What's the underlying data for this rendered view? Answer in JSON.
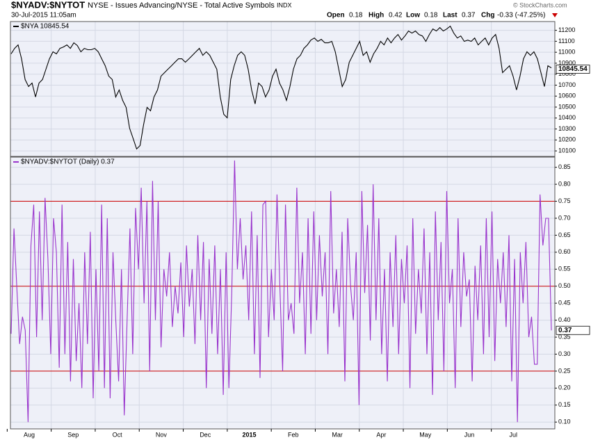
{
  "header": {
    "symbol": "$NYADV:$NYTOT",
    "description": "NYSE - Issues Advancing/NYSE - Total Active Symbols",
    "exchange": "INDX",
    "timestamp": "30-Jul-2015 11:05am",
    "open_label": "Open",
    "open": "0.18",
    "high_label": "High",
    "high": "0.42",
    "low_label": "Low",
    "low": "0.18",
    "last_label": "Last",
    "last": "0.37",
    "chg_label": "Chg",
    "chg": "-0.33 (-47.25%)",
    "credit": "© StockCharts.com"
  },
  "x_axis": {
    "labels": [
      "Aug",
      "Sep",
      "Oct",
      "Nov",
      "Dec",
      "2015",
      "Feb",
      "Mar",
      "Apr",
      "May",
      "Jun",
      "Jul"
    ]
  },
  "chart_data": [
    {
      "type": "line",
      "legend": "$NYA 10845.54",
      "last_value": 10845.54,
      "ylim": [
        10050,
        11280
      ],
      "yticks": [
        10100,
        10200,
        10300,
        10400,
        10500,
        10600,
        10700,
        10800,
        10900,
        11000,
        11100,
        11200
      ],
      "grid": true,
      "series": [
        {
          "color": "#000000",
          "values": [
            10985,
            11035,
            11067,
            10940,
            10751,
            10687,
            10719,
            10592,
            10719,
            10751,
            10846,
            10940,
            11004,
            10985,
            11035,
            11048,
            11067,
            11035,
            11086,
            11061,
            11004,
            11035,
            11023,
            11023,
            11035,
            11004,
            10940,
            10877,
            10782,
            10751,
            10592,
            10656,
            10561,
            10497,
            10307,
            10213,
            10118,
            10149,
            10339,
            10497,
            10466,
            10592,
            10656,
            10782,
            10814,
            10846,
            10877,
            10909,
            10940,
            10940,
            10909,
            10940,
            10972,
            11004,
            11035,
            10972,
            11004,
            10972,
            10909,
            10846,
            10592,
            10434,
            10402,
            10751,
            10877,
            10972,
            11004,
            10972,
            10846,
            10656,
            10529,
            10719,
            10687,
            10592,
            10656,
            10782,
            10846,
            10719,
            10656,
            10561,
            10687,
            10846,
            10940,
            10972,
            11035,
            11067,
            11111,
            11130,
            11099,
            11118,
            11086,
            11086,
            11099,
            11004,
            10846,
            10687,
            10751,
            10909,
            10972,
            11035,
            11099,
            10972,
            11004,
            10909,
            10985,
            11035,
            11099,
            11067,
            11130,
            11086,
            11130,
            11162,
            11111,
            11149,
            11194,
            11175,
            11194,
            11162,
            11149,
            11099,
            11162,
            11213,
            11194,
            11225,
            11194,
            11213,
            11238,
            11175,
            11130,
            11149,
            11099,
            11111,
            11099,
            11130,
            11067,
            11099,
            11130,
            11067,
            11130,
            11162,
            11035,
            10814,
            10846,
            10877,
            10782,
            10656,
            10782,
            10940,
            11004,
            10972,
            11004,
            10940,
            10814,
            10687,
            10877,
            10858
          ]
        }
      ]
    },
    {
      "type": "line",
      "legend": "$NYADV:$NYTOT (Daily) 0.37",
      "last_value": 0.37,
      "ylim": [
        0.08,
        0.88
      ],
      "yticks": [
        {
          "value": 0.1,
          "label": "0.10"
        },
        {
          "value": 0.15,
          "label": "0.15"
        },
        {
          "value": 0.2,
          "label": "0.20"
        },
        {
          "value": 0.25,
          "label": "0.25"
        },
        {
          "value": 0.3,
          "label": "0.30"
        },
        {
          "value": 0.35,
          "label": "0.35"
        },
        {
          "value": 0.4,
          "label": "0.40"
        },
        {
          "value": 0.45,
          "label": "0.45"
        },
        {
          "value": 0.5,
          "label": "0.50"
        },
        {
          "value": 0.55,
          "label": "0.55"
        },
        {
          "value": 0.6,
          "label": "0.60"
        },
        {
          "value": 0.65,
          "label": "0.65"
        },
        {
          "value": 0.7,
          "label": "0.70"
        },
        {
          "value": 0.75,
          "label": "0.75"
        },
        {
          "value": 0.8,
          "label": "0.80"
        },
        {
          "value": 0.85,
          "label": "0.85"
        }
      ],
      "grid": true,
      "reference_lines": [
        0.25,
        0.5,
        0.75
      ],
      "reference_color": "#cc0000",
      "series": [
        {
          "color": "#9933cc",
          "values": [
            0.36,
            0.67,
            0.5,
            0.33,
            0.41,
            0.37,
            0.1,
            0.62,
            0.74,
            0.35,
            0.72,
            0.4,
            0.76,
            0.58,
            0.3,
            0.7,
            0.6,
            0.26,
            0.74,
            0.3,
            0.63,
            0.22,
            0.58,
            0.28,
            0.45,
            0.2,
            0.6,
            0.33,
            0.66,
            0.17,
            0.55,
            0.25,
            0.74,
            0.2,
            0.7,
            0.17,
            0.6,
            0.4,
            0.22,
            0.55,
            0.12,
            0.4,
            0.67,
            0.3,
            0.73,
            0.55,
            0.79,
            0.45,
            0.75,
            0.25,
            0.81,
            0.4,
            0.75,
            0.32,
            0.55,
            0.47,
            0.6,
            0.38,
            0.5,
            0.42,
            0.57,
            0.35,
            0.62,
            0.44,
            0.55,
            0.33,
            0.65,
            0.4,
            0.63,
            0.2,
            0.58,
            0.36,
            0.62,
            0.3,
            0.55,
            0.18,
            0.6,
            0.2,
            0.48,
            0.87,
            0.55,
            0.7,
            0.52,
            0.62,
            0.4,
            0.72,
            0.3,
            0.65,
            0.23,
            0.74,
            0.75,
            0.35,
            0.55,
            0.4,
            0.77,
            0.5,
            0.25,
            0.74,
            0.4,
            0.45,
            0.36,
            0.79,
            0.45,
            0.6,
            0.3,
            0.7,
            0.36,
            0.72,
            0.4,
            0.65,
            0.47,
            0.6,
            0.3,
            0.78,
            0.42,
            0.55,
            0.38,
            0.66,
            0.22,
            0.7,
            0.5,
            0.4,
            0.6,
            0.15,
            0.78,
            0.48,
            0.68,
            0.34,
            0.8,
            0.4,
            0.7,
            0.3,
            0.55,
            0.22,
            0.6,
            0.38,
            0.65,
            0.3,
            0.58,
            0.45,
            0.62,
            0.2,
            0.7,
            0.36,
            0.55,
            0.42,
            0.67,
            0.3,
            0.6,
            0.18,
            0.72,
            0.4,
            0.63,
            0.25,
            0.78,
            0.45,
            0.55,
            0.2,
            0.7,
            0.38,
            0.6,
            0.47,
            0.52,
            0.22,
            0.56,
            0.4,
            0.62,
            0.3,
            0.7,
            0.35,
            0.72,
            0.28,
            0.58,
            0.45,
            0.6,
            0.38,
            0.65,
            0.22,
            0.58,
            0.1,
            0.6,
            0.45,
            0.63,
            0.35,
            0.41,
            0.27,
            0.27,
            0.77,
            0.62,
            0.7,
            0.7,
            0.37
          ]
        }
      ]
    }
  ]
}
